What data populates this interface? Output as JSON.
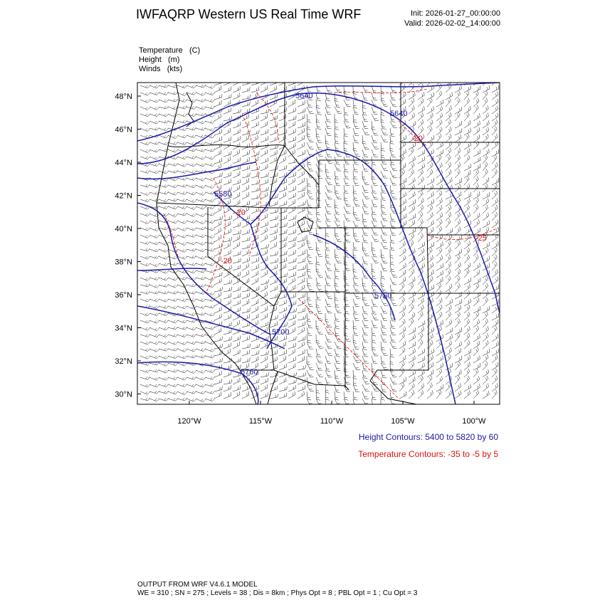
{
  "header": {
    "title": "IWFAQRP Western US Real Time WRF",
    "init": "Init: 2026-01-27_00:00:00",
    "valid": "Valid: 2026-02-02_14:00:00"
  },
  "fields": [
    {
      "name": "Temperature",
      "unit": "(C)"
    },
    {
      "name": "Height",
      "unit": "(m)"
    },
    {
      "name": "Winds",
      "unit": "(kts)"
    }
  ],
  "axes": {
    "lat_labels": [
      "48°N",
      "46°N",
      "44°N",
      "42°N",
      "40°N",
      "38°N",
      "36°N",
      "34°N",
      "32°N",
      "30°N"
    ],
    "lon_labels": [
      "120°W",
      "115°W",
      "110°W",
      "105°W",
      "100°W"
    ]
  },
  "contour_labels": {
    "height": [
      "5640",
      "5640",
      "5580",
      "5760",
      "5700",
      "5760"
    ],
    "temperature": [
      "-20",
      "-20",
      "-20",
      "-25"
    ]
  },
  "notes": {
    "height": "Height Contours: 5400 to 5820 by 60",
    "temperature": "Temperature Contours: -35 to -5 by 5"
  },
  "footer": {
    "line1": "OUTPUT FROM WRF V4.6.1 MODEL",
    "line2": "WE = 310 ; SN = 275 ; Levels = 38 ; Dis = 8km ; Phys Opt = 8 ; PBL Opt = 1 ; Cu Opt = 3"
  },
  "colors": {
    "height_contour": "#1a1aa8",
    "temperature_contour": "#e01010",
    "borders": "#000000"
  }
}
